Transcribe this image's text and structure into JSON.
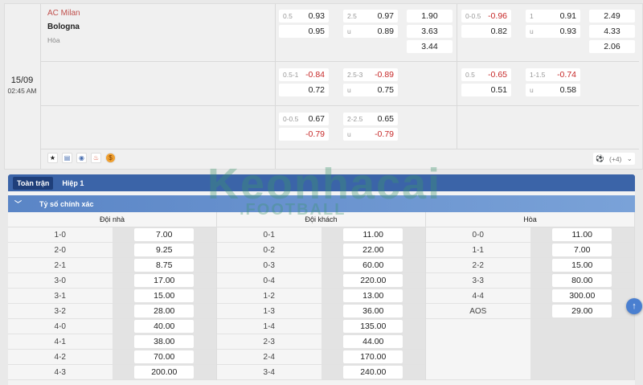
{
  "match": {
    "home": "AC Milan",
    "away": "Bologna",
    "draw": "Hòa",
    "date": "15/09",
    "time": "02:45 AM"
  },
  "odds_rows": [
    {
      "g1": {
        "hcap_label": "0.5",
        "hcap_top": "0.93",
        "hcap_bot": "0.95",
        "ou_label": "2.5",
        "ou_top": "0.97",
        "ou_u": "u",
        "ou_bot": "0.89",
        "x12": [
          "1.90",
          "3.63",
          "3.44"
        ]
      },
      "g2": {
        "hcap_label": "0-0.5",
        "hcap_top": "-0.96",
        "hcap_bot": "0.82",
        "ou_label": "1",
        "ou_top": "0.91",
        "ou_u": "u",
        "ou_bot": "0.93",
        "x12": [
          "2.49",
          "4.33",
          "2.06"
        ]
      }
    },
    {
      "g1": {
        "hcap_label": "0.5-1",
        "hcap_top": "-0.84",
        "hcap_bot": "0.72",
        "ou_label": "2.5-3",
        "ou_top": "-0.89",
        "ou_u": "u",
        "ou_bot": "0.75"
      },
      "g2": {
        "hcap_label": "0.5",
        "hcap_top": "-0.65",
        "hcap_bot": "0.51",
        "ou_label": "1-1.5",
        "ou_top": "-0.74",
        "ou_u": "u",
        "ou_bot": "0.58"
      }
    },
    {
      "g1": {
        "hcap_label": "0-0.5",
        "hcap_top": "0.67",
        "hcap_bot": "-0.79",
        "ou_label": "2-2.5",
        "ou_top": "0.65",
        "ou_u": "u",
        "ou_bot": "-0.79"
      }
    }
  ],
  "more": "(+4)",
  "tabs": [
    "Toàn trận",
    "Hiệp 1"
  ],
  "section_title": "Tỷ số chính xác",
  "columns": [
    {
      "header": "Đội nhà",
      "rows": [
        [
          "1-0",
          "7.00"
        ],
        [
          "2-0",
          "9.25"
        ],
        [
          "2-1",
          "8.75"
        ],
        [
          "3-0",
          "17.00"
        ],
        [
          "3-1",
          "15.00"
        ],
        [
          "3-2",
          "28.00"
        ],
        [
          "4-0",
          "40.00"
        ],
        [
          "4-1",
          "38.00"
        ],
        [
          "4-2",
          "70.00"
        ],
        [
          "4-3",
          "200.00"
        ]
      ]
    },
    {
      "header": "Đội khách",
      "rows": [
        [
          "0-1",
          "11.00"
        ],
        [
          "0-2",
          "22.00"
        ],
        [
          "0-3",
          "60.00"
        ],
        [
          "0-4",
          "220.00"
        ],
        [
          "1-2",
          "13.00"
        ],
        [
          "1-3",
          "36.00"
        ],
        [
          "1-4",
          "135.00"
        ],
        [
          "2-3",
          "44.00"
        ],
        [
          "2-4",
          "170.00"
        ],
        [
          "3-4",
          "240.00"
        ]
      ]
    },
    {
      "header": "Hòa",
      "rows": [
        [
          "0-0",
          "11.00"
        ],
        [
          "1-1",
          "7.00"
        ],
        [
          "2-2",
          "15.00"
        ],
        [
          "3-3",
          "80.00"
        ],
        [
          "4-4",
          "300.00"
        ],
        [
          "AOS",
          "29.00"
        ]
      ]
    }
  ],
  "watermark": {
    "main": "Keonhacai",
    "sub": ".FOOTBALL"
  },
  "colors": {
    "accent": "#3b64a8",
    "negative": "#c62828",
    "home": "#c0504d"
  }
}
